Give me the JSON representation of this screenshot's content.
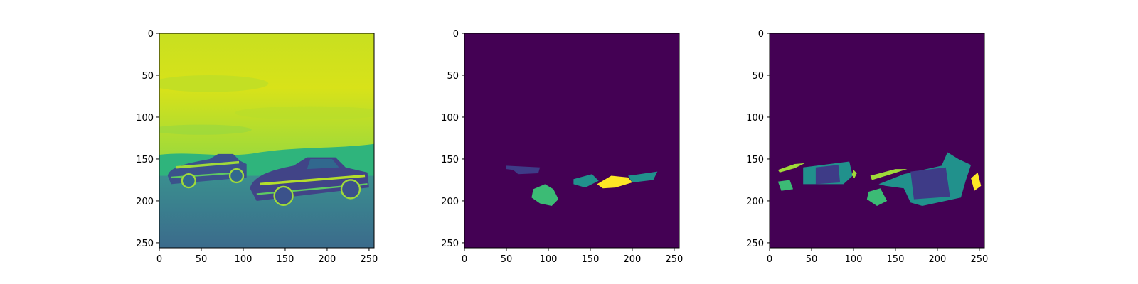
{
  "figure": {
    "background": "#ffffff",
    "colormap": "viridis",
    "colors": {
      "purple": "#440154",
      "indigo": "#3e3b87",
      "teal": "#21918c",
      "green": "#3cbb75",
      "lime": "#a0da39",
      "yellow": "#fde725"
    }
  },
  "chart_data": [
    {
      "type": "heatmap",
      "content": "grayscale photo rendered with viridis colormap (two cars on a road)",
      "x": {
        "lim": [
          0,
          256
        ],
        "ticks": [
          0,
          50,
          100,
          150,
          200,
          250
        ],
        "tick_labels": [
          "0",
          "50",
          "100",
          "150",
          "200",
          "250"
        ]
      },
      "y": {
        "lim": [
          256,
          0
        ],
        "ticks": [
          0,
          50,
          100,
          150,
          200,
          250
        ],
        "tick_labels": [
          "0",
          "50",
          "100",
          "150",
          "200",
          "250"
        ]
      },
      "grid": false,
      "legend": "none"
    },
    {
      "type": "heatmap",
      "content": "predicted segmentation mask",
      "x": {
        "lim": [
          0,
          256
        ],
        "ticks": [
          0,
          50,
          100,
          150,
          200,
          250
        ],
        "tick_labels": [
          "0",
          "50",
          "100",
          "150",
          "200",
          "250"
        ]
      },
      "y": {
        "lim": [
          256,
          0
        ],
        "ticks": [
          0,
          50,
          100,
          150,
          200,
          250
        ],
        "tick_labels": [
          "0",
          "50",
          "100",
          "150",
          "200",
          "250"
        ]
      },
      "grid": false,
      "legend": "none",
      "regions": [
        {
          "color": "indigo",
          "points": [
            [
              50,
              158
            ],
            [
              90,
              160
            ],
            [
              88,
              167
            ],
            [
              64,
              168
            ],
            [
              58,
              163
            ],
            [
              50,
              162
            ]
          ]
        },
        {
          "color": "green",
          "points": [
            [
              82,
              186
            ],
            [
              96,
              180
            ],
            [
              106,
              186
            ],
            [
              112,
              198
            ],
            [
              104,
              206
            ],
            [
              90,
              203
            ],
            [
              80,
              196
            ]
          ]
        },
        {
          "color": "teal",
          "points": [
            [
              130,
              174
            ],
            [
              152,
              168
            ],
            [
              160,
              176
            ],
            [
              144,
              184
            ],
            [
              130,
              180
            ]
          ]
        },
        {
          "color": "teal",
          "points": [
            [
              195,
              170
            ],
            [
              230,
              165
            ],
            [
              225,
              175
            ],
            [
              200,
              178
            ]
          ]
        },
        {
          "color": "yellow",
          "points": [
            [
              158,
              180
            ],
            [
              175,
              170
            ],
            [
              195,
              172
            ],
            [
              200,
              178
            ],
            [
              180,
              184
            ],
            [
              165,
              185
            ]
          ]
        }
      ]
    },
    {
      "type": "heatmap",
      "content": "ground-truth segmentation mask",
      "x": {
        "lim": [
          0,
          256
        ],
        "ticks": [
          0,
          50,
          100,
          150,
          200,
          250
        ],
        "tick_labels": [
          "0",
          "50",
          "100",
          "150",
          "200",
          "250"
        ]
      },
      "y": {
        "lim": [
          256,
          0
        ],
        "ticks": [
          0,
          50,
          100,
          150,
          200,
          250
        ],
        "tick_labels": [
          "0",
          "50",
          "100",
          "150",
          "200",
          "250"
        ]
      },
      "grid": false,
      "legend": "none",
      "regions": [
        {
          "color": "lime",
          "points": [
            [
              10,
              163
            ],
            [
              30,
              156
            ],
            [
              42,
              155
            ],
            [
              30,
              161
            ],
            [
              12,
              166
            ]
          ]
        },
        {
          "color": "teal",
          "points": [
            [
              40,
              160
            ],
            [
              95,
              153
            ],
            [
              99,
              170
            ],
            [
              88,
              180
            ],
            [
              40,
              180
            ]
          ]
        },
        {
          "color": "indigo",
          "points": [
            [
              55,
              160
            ],
            [
              82,
              157
            ],
            [
              84,
              178
            ],
            [
              55,
              180
            ]
          ]
        },
        {
          "color": "green",
          "points": [
            [
              10,
              177
            ],
            [
              24,
              175
            ],
            [
              28,
              186
            ],
            [
              14,
              188
            ]
          ]
        },
        {
          "color": "lime",
          "points": [
            [
              100,
              163
            ],
            [
              104,
              167
            ],
            [
              101,
              173
            ],
            [
              98,
              169
            ]
          ]
        },
        {
          "color": "lime",
          "points": [
            [
              120,
              170
            ],
            [
              150,
              162
            ],
            [
              164,
              162
            ],
            [
              145,
              168
            ],
            [
              122,
              175
            ]
          ]
        },
        {
          "color": "teal",
          "points": [
            [
              130,
              180
            ],
            [
              160,
              168
            ],
            [
              205,
              158
            ],
            [
              212,
              142
            ],
            [
              225,
              150
            ],
            [
              240,
              157
            ],
            [
              234,
              175
            ],
            [
              228,
              196
            ],
            [
              182,
              206
            ],
            [
              168,
              202
            ],
            [
              160,
              185
            ],
            [
              138,
              182
            ]
          ]
        },
        {
          "color": "indigo",
          "points": [
            [
              168,
              165
            ],
            [
              210,
              160
            ],
            [
              215,
              195
            ],
            [
              172,
              198
            ]
          ]
        },
        {
          "color": "green",
          "points": [
            [
              118,
              189
            ],
            [
              132,
              185
            ],
            [
              140,
              200
            ],
            [
              128,
              206
            ],
            [
              116,
              198
            ]
          ]
        },
        {
          "color": "yellow",
          "points": [
            [
              240,
              173
            ],
            [
              248,
              166
            ],
            [
              252,
              182
            ],
            [
              244,
              188
            ]
          ]
        }
      ]
    }
  ]
}
